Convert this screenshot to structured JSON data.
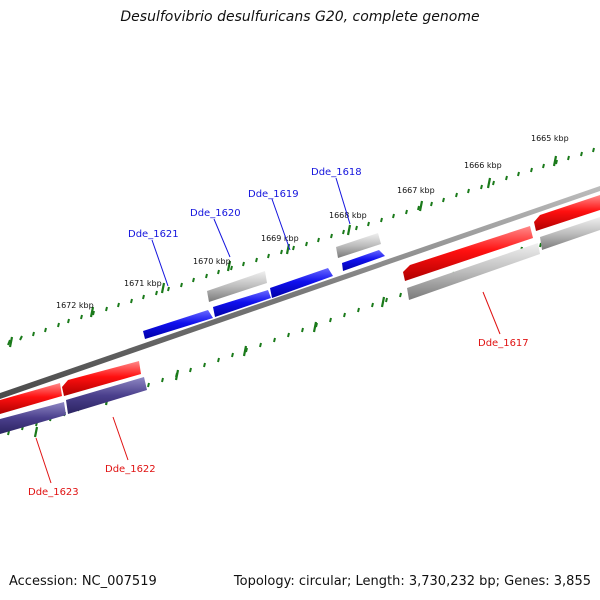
{
  "title": "Desulfovibrio desulfuricans G20, complete genome",
  "footer": {
    "accession": "Accession: NC_007519",
    "summary": "Topology: circular; Length: 3,730,232 bp; Genes: 3,855"
  },
  "colors": {
    "forward_strand": "#1414dd",
    "reverse_strand": "#e01212",
    "reverse_cds_shadow": "#4a3f8c",
    "rna_or_pseudo": "#999999",
    "backbone": "#777777",
    "ticks": "#1a7a1a"
  },
  "scale_labels": [
    "1665 kbp",
    "1666 kbp",
    "1667 kbp",
    "1668 kbp",
    "1669 kbp",
    "1670 kbp",
    "1671 kbp",
    "1672 kbp"
  ],
  "genes": [
    {
      "label": "Dde_1617",
      "strand": "reverse"
    },
    {
      "label": "Dde_1618",
      "strand": "forward"
    },
    {
      "label": "Dde_1619",
      "strand": "forward"
    },
    {
      "label": "Dde_1620",
      "strand": "forward"
    },
    {
      "label": "Dde_1621",
      "strand": "forward"
    },
    {
      "label": "Dde_1622",
      "strand": "reverse"
    },
    {
      "label": "Dde_1623",
      "strand": "reverse"
    }
  ]
}
